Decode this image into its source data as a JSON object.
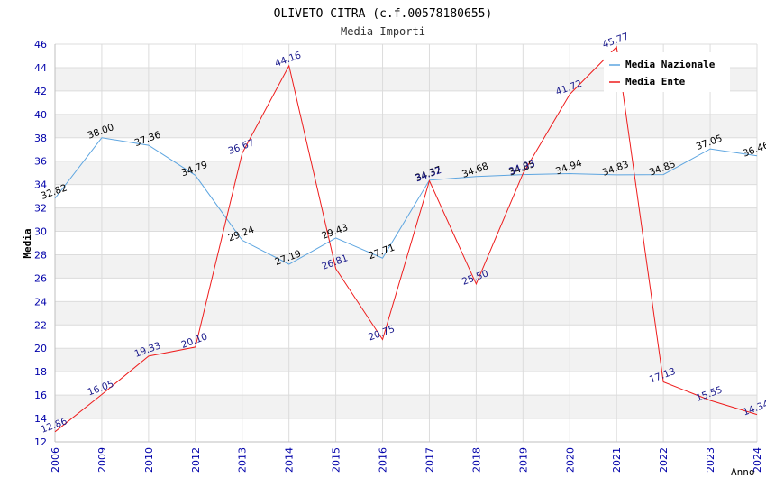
{
  "chart_data": {
    "type": "line",
    "title": "OLIVETO CITRA (c.f.00578180655)",
    "subtitle": "Media Importi",
    "xlabel": "Anno",
    "ylabel": "Media",
    "ylim": [
      12,
      46
    ],
    "ystep": 2,
    "grid": true,
    "legend_position": "top-right",
    "categories": [
      "2006",
      "2009",
      "2010",
      "2012",
      "2013",
      "2014",
      "2015",
      "2016",
      "2017",
      "2018",
      "2019",
      "2020",
      "2021",
      "2022",
      "2023",
      "2024"
    ],
    "series": [
      {
        "name": "Media Nazionale",
        "color": "#5da5e0",
        "labelColor": "#000000",
        "values": [
          32.82,
          38.0,
          37.36,
          34.79,
          29.24,
          27.19,
          29.43,
          27.71,
          34.37,
          34.68,
          34.85,
          34.94,
          34.83,
          34.85,
          37.05,
          36.46
        ],
        "labels": [
          "32.82",
          "38.00",
          "37.36",
          "34.79",
          "29.24",
          "27.19",
          "29.43",
          "27.71",
          "34.37",
          "34.68",
          "34.85",
          "34.94",
          "34.83",
          "34.85",
          "37.05",
          "36.46"
        ]
      },
      {
        "name": "Media Ente",
        "color": "#ee1c1c",
        "labelColor": "#1a1a8c",
        "values": [
          12.86,
          16.05,
          19.33,
          20.1,
          36.67,
          44.16,
          26.81,
          20.75,
          34.32,
          25.5,
          34.93,
          41.72,
          45.77,
          17.13,
          15.55,
          14.34
        ],
        "labels": [
          "12.86",
          "16.05",
          "19.33",
          "20.10",
          "36.67",
          "44.16",
          "26.81",
          "20.75",
          "34.32",
          "25.50",
          "34.93",
          "41.72",
          "45.77",
          "17.13",
          "15.55",
          "14.34"
        ]
      }
    ]
  }
}
